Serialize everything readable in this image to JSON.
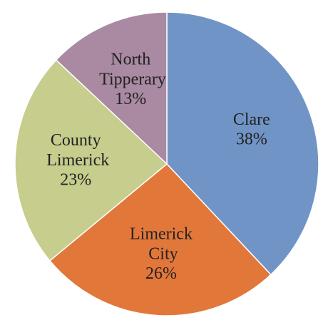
{
  "chart_data": {
    "type": "pie",
    "categories": [
      "Clare",
      "Limerick City",
      "County Limerick",
      "North Tipperary"
    ],
    "values": [
      38,
      26,
      23,
      13
    ],
    "value_labels": [
      "38%",
      "26%",
      "23%",
      "13%"
    ],
    "colors": [
      "#7094c6",
      "#e2773a",
      "#c6cd8d",
      "#a98aa2"
    ]
  }
}
